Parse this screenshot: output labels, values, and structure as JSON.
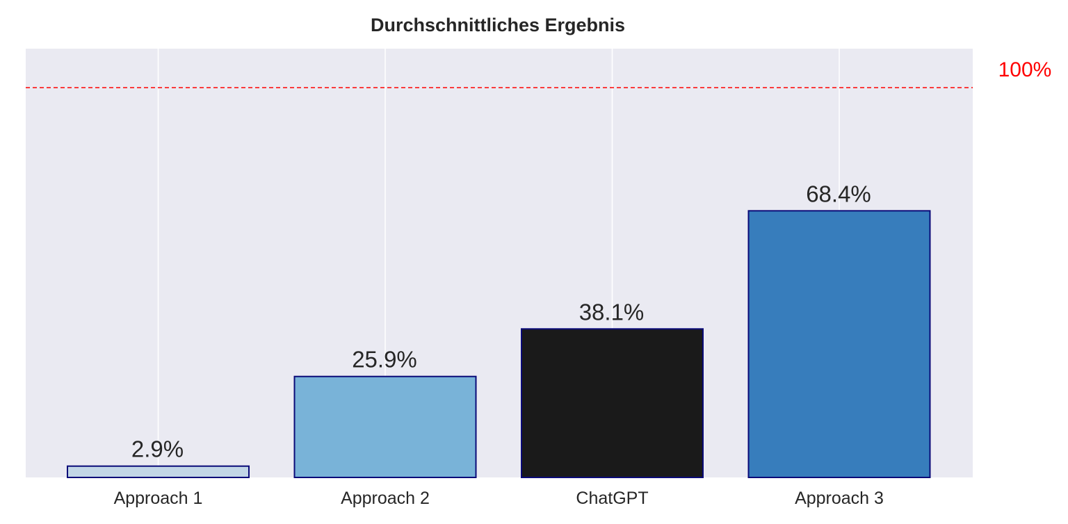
{
  "chart_data": {
    "type": "bar",
    "title": "Durchschnittliches Ergebnis",
    "xlabel": "",
    "ylabel": "",
    "categories": [
      "Approach 1",
      "Approach 2",
      "ChatGPT",
      "Approach 3"
    ],
    "values": [
      2.9,
      25.9,
      38.1,
      68.4
    ],
    "value_labels": [
      "2.9%",
      "25.9%",
      "38.1%",
      "68.4%"
    ],
    "ylim": [
      0,
      110
    ],
    "grid": "vertical",
    "legend": "none",
    "bar_colors": [
      "#c2d6e6",
      "#79b3d8",
      "#1a1a1a",
      "#377dbc"
    ],
    "bar_edge_color": "#0a0a78",
    "background_color": "#eaeaf2",
    "grid_color": "#ffffff",
    "reference_line": {
      "value": 100,
      "label": "100%",
      "color": "#ff0000",
      "style": "dashed"
    }
  }
}
